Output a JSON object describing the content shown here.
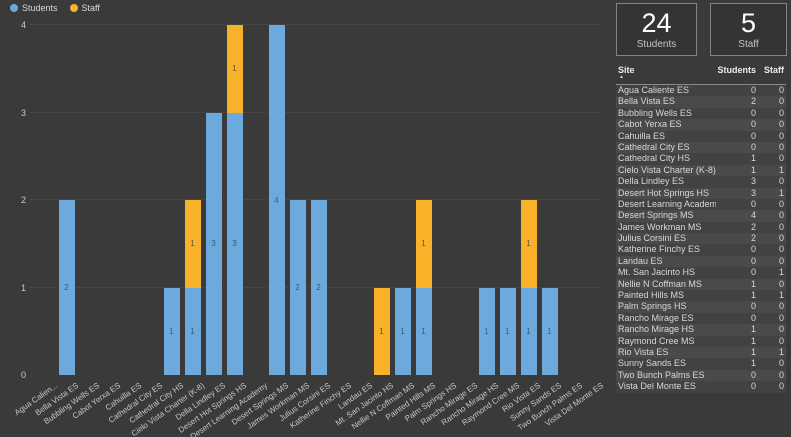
{
  "kpi_cards": [
    {
      "value": "24",
      "label": "Students"
    },
    {
      "value": "5",
      "label": "Staff"
    }
  ],
  "chart_data": {
    "type": "bar",
    "stacked": true,
    "title": "",
    "xlabel": "",
    "ylabel": "",
    "ylim": [
      0,
      4
    ],
    "yticks": [
      0,
      1,
      2,
      3,
      4
    ],
    "grid": "dotted-horizontal",
    "legend_position": "top-left",
    "categories": [
      "Agua Calien...",
      "Bella Vista ES",
      "Bubbling Wells ES",
      "Cabot Yerxa ES",
      "Cahuilla ES",
      "Cathedral City ES",
      "Cathedral City HS",
      "Cielo Vista Charter (K-8)",
      "Della Lindley ES",
      "Desert Hot Springs HS",
      "Desert Learning Academy",
      "Desert Springs MS",
      "James Workman MS",
      "Julius Corsini ES",
      "Katherine Finchy ES",
      "Landau ES",
      "Mt. San Jacinto HS",
      "Nellie N Coffman MS",
      "Painted Hills MS",
      "Palm Springs HS",
      "Rancho Mirage ES",
      "Rancho Mirage HS",
      "Raymond Cree MS",
      "Rio Vista ES",
      "Sunny Sands ES",
      "Two Bunch Palms ES",
      "Vista Del Monte ES"
    ],
    "series": [
      {
        "name": "Students",
        "color": "#6ca9dc",
        "label_color": "#3e5a73",
        "values": [
          0,
          2,
          0,
          0,
          0,
          0,
          1,
          1,
          3,
          3,
          0,
          4,
          2,
          2,
          0,
          0,
          0,
          1,
          1,
          0,
          0,
          1,
          1,
          1,
          1,
          0,
          0
        ]
      },
      {
        "name": "Staff",
        "color": "#f8b229",
        "label_color": "#5c5340",
        "values": [
          0,
          0,
          0,
          0,
          0,
          0,
          0,
          1,
          0,
          1,
          0,
          0,
          0,
          0,
          0,
          0,
          1,
          0,
          1,
          0,
          0,
          0,
          0,
          1,
          0,
          0,
          0
        ]
      }
    ]
  },
  "table": {
    "columns": [
      "Site",
      "Students",
      "Staff"
    ],
    "sort": {
      "column": "Site",
      "direction": "asc",
      "arrow": "▲"
    },
    "rows": [
      [
        "Agua Caliente ES",
        0,
        0
      ],
      [
        "Bella Vista ES",
        2,
        0
      ],
      [
        "Bubbling Wells ES",
        0,
        0
      ],
      [
        "Cabot Yerxa ES",
        0,
        0
      ],
      [
        "Cahuilla ES",
        0,
        0
      ],
      [
        "Cathedral City ES",
        0,
        0
      ],
      [
        "Cathedral City HS",
        1,
        0
      ],
      [
        "Cielo Vista Charter (K-8)",
        1,
        1
      ],
      [
        "Della Lindley ES",
        3,
        0
      ],
      [
        "Desert Hot Springs HS",
        3,
        1
      ],
      [
        "Desert Learning Academy",
        0,
        0
      ],
      [
        "Desert Springs MS",
        4,
        0
      ],
      [
        "James Workman MS",
        2,
        0
      ],
      [
        "Julius Corsini ES",
        2,
        0
      ],
      [
        "Katherine Finchy ES",
        0,
        0
      ],
      [
        "Landau ES",
        0,
        0
      ],
      [
        "Mt. San Jacinto HS",
        0,
        1
      ],
      [
        "Nellie N Coffman MS",
        1,
        0
      ],
      [
        "Painted Hills MS",
        1,
        1
      ],
      [
        "Palm Springs HS",
        0,
        0
      ],
      [
        "Rancho Mirage ES",
        0,
        0
      ],
      [
        "Rancho Mirage HS",
        1,
        0
      ],
      [
        "Raymond Cree MS",
        1,
        0
      ],
      [
        "Rio Vista ES",
        1,
        1
      ],
      [
        "Sunny Sands ES",
        1,
        0
      ],
      [
        "Two Bunch Palms ES",
        0,
        0
      ],
      [
        "Vista Del Monte ES",
        0,
        0
      ]
    ]
  },
  "colors": {
    "background": "#3a3a3a",
    "students_blue": "#6ca9dc",
    "staff_orange": "#f8b229",
    "row_stripe_dark": "#424242",
    "row_stripe_light": "#4a4a4a"
  }
}
